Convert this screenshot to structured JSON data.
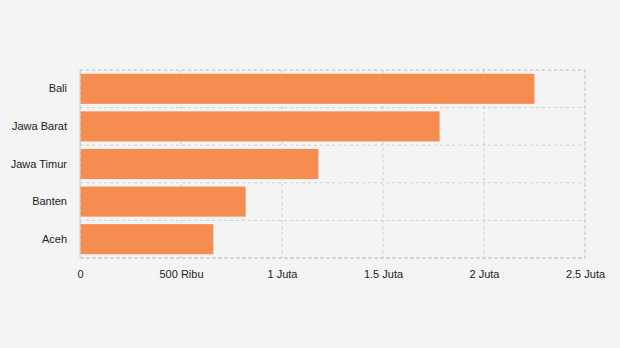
{
  "chart_data": {
    "type": "bar",
    "orientation": "horizontal",
    "categories": [
      "Bali",
      "Jawa Barat",
      "Jawa Timur",
      "Banten",
      "Aceh"
    ],
    "values": [
      2250000,
      1780000,
      1180000,
      820000,
      660000
    ],
    "color": "#f58d50",
    "xlim": [
      0,
      2500000
    ],
    "xticks": [
      0,
      {
        "value": 500000,
        "label": "500 Ribu"
      },
      {
        "value": 1000000,
        "label": "1 Juta"
      },
      {
        "value": 1500000,
        "label": "1.5 Juta"
      },
      {
        "value": 2000000,
        "label": "2 Juta"
      },
      {
        "value": 2500000,
        "label": "2.5 Juta"
      }
    ],
    "grid": true
  }
}
